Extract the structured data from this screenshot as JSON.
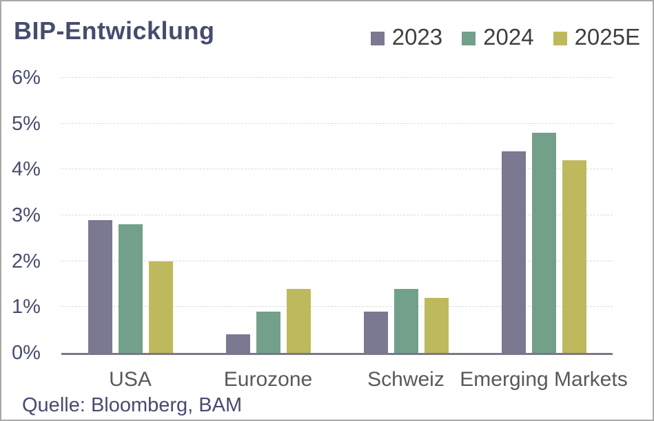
{
  "source": {
    "label": "Quelle: Bloomberg, BAM"
  },
  "chart_data": {
    "type": "bar",
    "title": "BIP-Entwicklung",
    "categories": [
      "USA",
      "Eurozone",
      "Schweiz",
      "Emerging Markets"
    ],
    "series": [
      {
        "name": "2023",
        "color": "#7b7892",
        "values": [
          2.9,
          0.4,
          0.9,
          4.4
        ]
      },
      {
        "name": "2024",
        "color": "#72a08b",
        "values": [
          2.8,
          0.9,
          1.4,
          4.8
        ]
      },
      {
        "name": "2025E",
        "color": "#bfb95d",
        "values": [
          2.0,
          1.4,
          1.2,
          4.2
        ]
      }
    ],
    "y_axis": {
      "min": 0,
      "max": 6,
      "unit": "%",
      "ticks": [
        "0%",
        "1%",
        "2%",
        "3%",
        "4%",
        "5%",
        "6%"
      ]
    },
    "legend_position": "top-right",
    "grid": "horizontal-dashed",
    "colors": {
      "title_text": "#464c6e",
      "axis_tick_text": "#464c6e",
      "category_text": "#595959",
      "legend_text": "#3f3f3f",
      "gridline": "#d8d8e4",
      "baseline": "#7a7888",
      "frame_border": "#a8a8a8",
      "background": "#ffffff"
    }
  }
}
